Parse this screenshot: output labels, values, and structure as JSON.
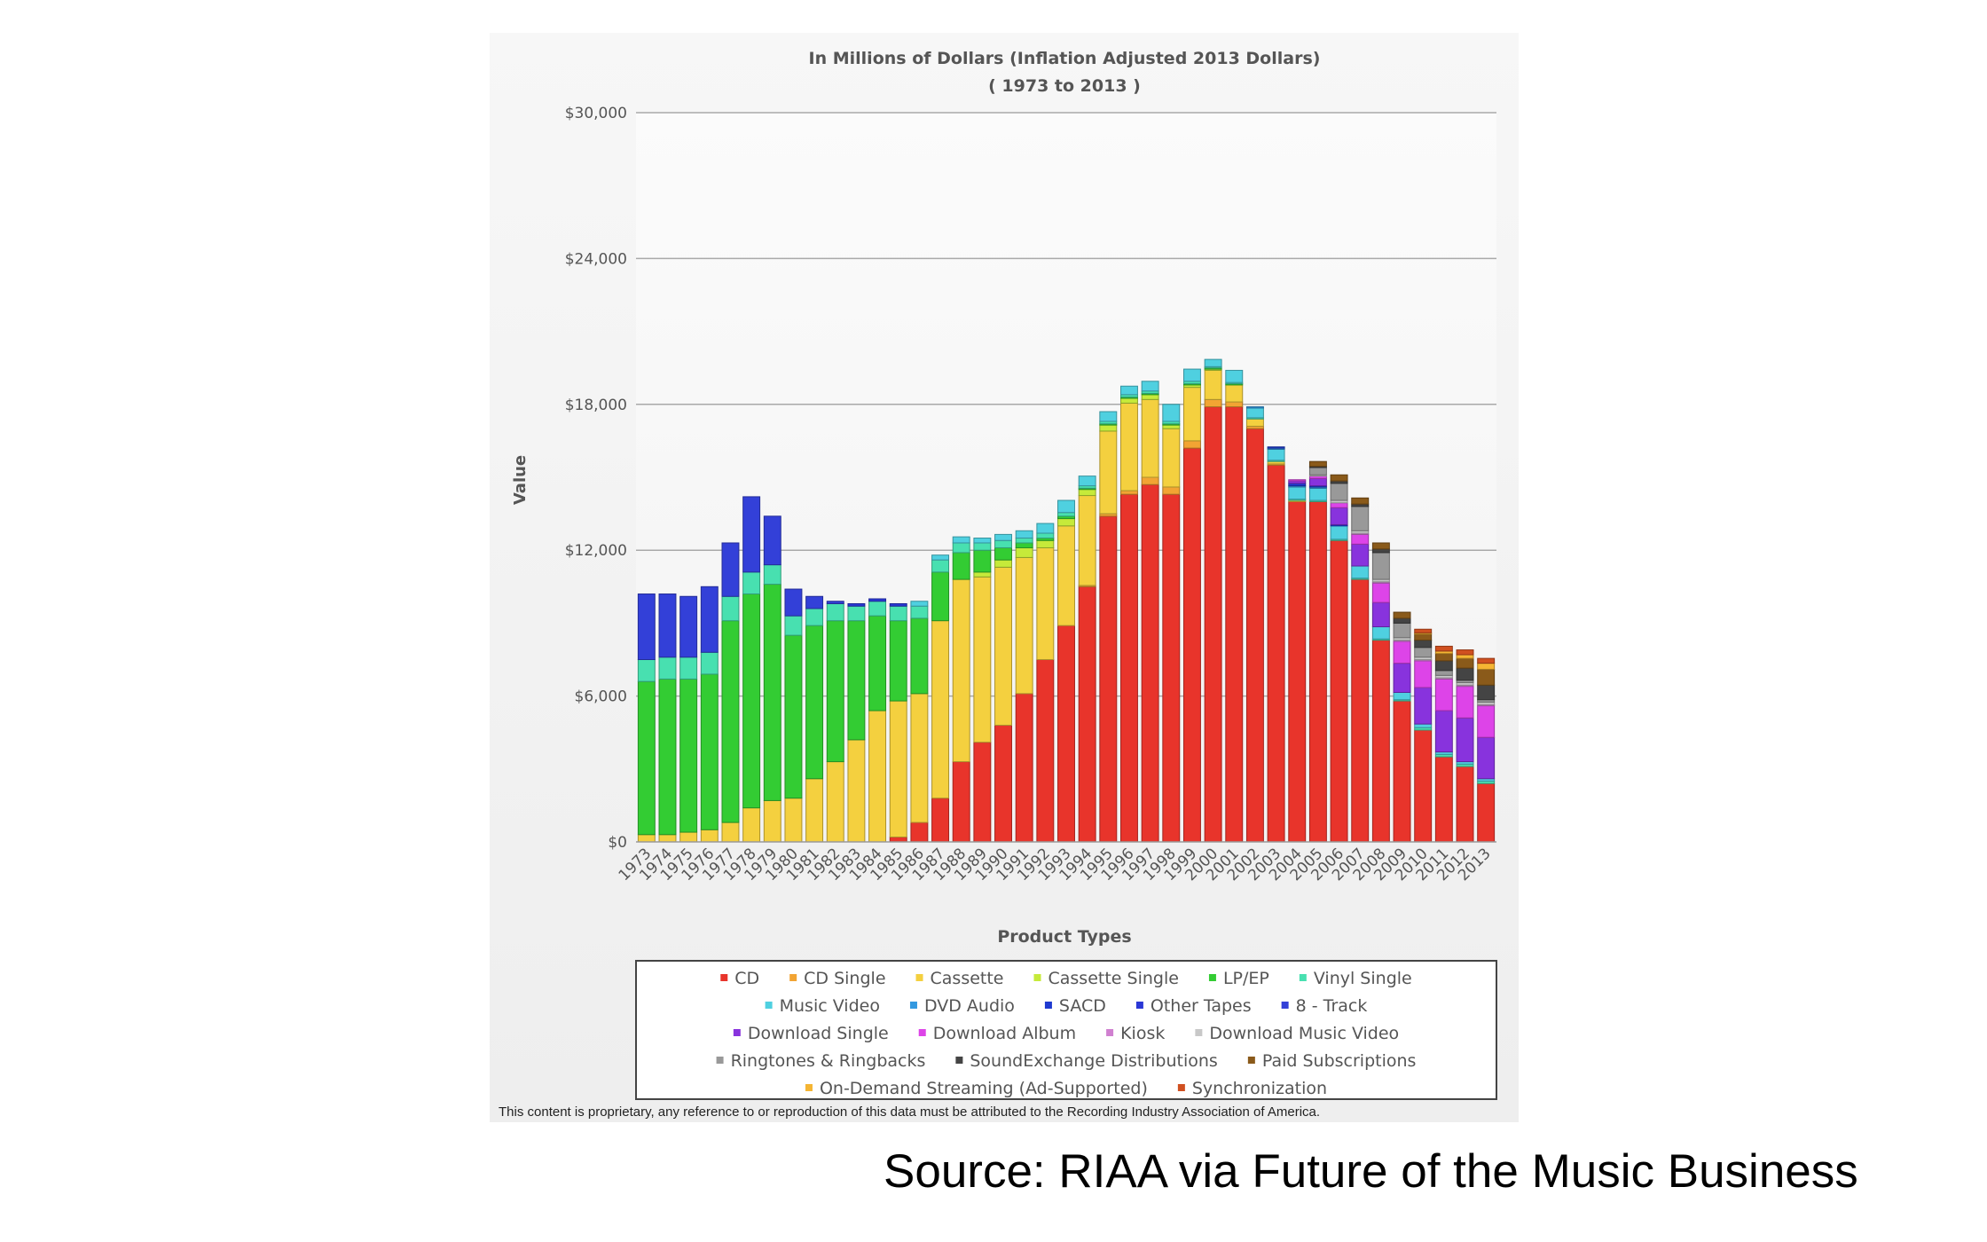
{
  "chart_data": {
    "type": "bar",
    "stacked": true,
    "title": "In Millions of Dollars (Inflation Adjusted 2013 Dollars)",
    "subtitle": "( 1973 to 2013 )",
    "xlabel": "Product Types",
    "ylabel": "Value",
    "ylim": [
      0,
      30000
    ],
    "yticks": [
      "$0",
      "$6,000",
      "$12,000",
      "$18,000",
      "$24,000",
      "$30,000"
    ],
    "ytick_values": [
      0,
      6000,
      12000,
      18000,
      24000,
      30000
    ],
    "grid": true,
    "legend_position": "bottom",
    "categories": [
      "1973",
      "1974",
      "1975",
      "1976",
      "1977",
      "1978",
      "1979",
      "1980",
      "1981",
      "1982",
      "1983",
      "1984",
      "1985",
      "1986",
      "1987",
      "1988",
      "1989",
      "1990",
      "1991",
      "1992",
      "1993",
      "1994",
      "1995",
      "1996",
      "1997",
      "1998",
      "1999",
      "2000",
      "2001",
      "2002",
      "2003",
      "2004",
      "2005",
      "2006",
      "2007",
      "2008",
      "2009",
      "2010",
      "2011",
      "2012",
      "2013"
    ],
    "series": [
      {
        "name": "CD",
        "color": "#e8342b",
        "values": [
          0,
          0,
          0,
          0,
          0,
          0,
          0,
          0,
          0,
          0,
          0,
          0,
          200,
          800,
          1800,
          3300,
          4100,
          4800,
          6100,
          7500,
          8900,
          10500,
          13400,
          14300,
          14700,
          14300,
          16200,
          17900,
          17900,
          17000,
          15500,
          14000,
          14000,
          12400,
          10800,
          8300,
          5800,
          4600,
          3500,
          3100,
          2400
        ]
      },
      {
        "name": "CD Single",
        "color": "#f2a433",
        "values": [
          0,
          0,
          0,
          0,
          0,
          0,
          0,
          0,
          0,
          0,
          0,
          0,
          0,
          0,
          0,
          0,
          0,
          0,
          0,
          0,
          0,
          50,
          100,
          150,
          300,
          300,
          300,
          300,
          200,
          100,
          50,
          0,
          0,
          0,
          0,
          0,
          0,
          0,
          0,
          0,
          0
        ]
      },
      {
        "name": "Cassette",
        "color": "#f4d03f",
        "values": [
          300,
          300,
          400,
          500,
          800,
          1400,
          1700,
          1800,
          2600,
          3300,
          4200,
          5400,
          5600,
          5300,
          7300,
          7500,
          6800,
          6500,
          5600,
          4600,
          4100,
          3700,
          3400,
          3600,
          3200,
          2400,
          2200,
          1200,
          700,
          300,
          100,
          50,
          0,
          0,
          0,
          0,
          0,
          0,
          0,
          0,
          0
        ]
      },
      {
        "name": "Cassette Single",
        "color": "#c6ea3a",
        "values": [
          0,
          0,
          0,
          0,
          0,
          0,
          0,
          0,
          0,
          0,
          0,
          0,
          0,
          0,
          0,
          0,
          200,
          300,
          400,
          300,
          300,
          250,
          250,
          200,
          200,
          150,
          100,
          50,
          0,
          0,
          0,
          0,
          0,
          0,
          0,
          0,
          0,
          0,
          0,
          0,
          0
        ]
      },
      {
        "name": "LP/EP",
        "color": "#33cc33",
        "values": [
          6300,
          6400,
          6300,
          6400,
          8300,
          8800,
          8900,
          6700,
          6300,
          5800,
          4900,
          3900,
          3300,
          3100,
          2000,
          1100,
          900,
          500,
          200,
          100,
          100,
          50,
          50,
          50,
          50,
          50,
          50,
          50,
          50,
          0,
          0,
          0,
          0,
          0,
          0,
          0,
          0,
          0,
          0,
          0,
          0
        ]
      },
      {
        "name": "Vinyl Single",
        "color": "#48e0b0",
        "values": [
          900,
          900,
          900,
          900,
          1000,
          900,
          800,
          800,
          700,
          700,
          600,
          600,
          600,
          500,
          500,
          400,
          300,
          300,
          200,
          200,
          150,
          100,
          100,
          100,
          100,
          100,
          100,
          50,
          50,
          50,
          50,
          50,
          50,
          50,
          50,
          50,
          50,
          100,
          100,
          100,
          100
        ]
      },
      {
        "name": "Music Video",
        "color": "#4fd0e0",
        "values": [
          0,
          0,
          0,
          0,
          0,
          0,
          0,
          0,
          0,
          0,
          0,
          0,
          0,
          200,
          200,
          250,
          200,
          250,
          300,
          400,
          500,
          400,
          400,
          350,
          400,
          700,
          500,
          300,
          500,
          400,
          450,
          500,
          500,
          550,
          500,
          500,
          300,
          150,
          100,
          100,
          100
        ]
      },
      {
        "name": "DVD Audio",
        "color": "#3399e0",
        "values": [
          0,
          0,
          0,
          0,
          0,
          0,
          0,
          0,
          0,
          0,
          0,
          0,
          0,
          0,
          0,
          0,
          0,
          0,
          0,
          0,
          0,
          0,
          0,
          0,
          0,
          0,
          0,
          0,
          0,
          50,
          50,
          50,
          50,
          0,
          0,
          0,
          0,
          0,
          0,
          0,
          0
        ]
      },
      {
        "name": "SACD",
        "color": "#1f3ad0",
        "values": [
          0,
          0,
          0,
          0,
          0,
          0,
          0,
          0,
          0,
          0,
          0,
          0,
          0,
          0,
          0,
          0,
          0,
          0,
          0,
          0,
          0,
          0,
          0,
          0,
          0,
          0,
          0,
          0,
          0,
          0,
          50,
          100,
          50,
          50,
          0,
          0,
          0,
          0,
          0,
          0,
          0
        ]
      },
      {
        "name": "Other Tapes",
        "color": "#2b38d6",
        "values": [
          0,
          0,
          0,
          0,
          0,
          0,
          0,
          0,
          0,
          0,
          100,
          100,
          100,
          0,
          0,
          0,
          0,
          0,
          0,
          0,
          0,
          0,
          0,
          0,
          0,
          0,
          0,
          0,
          0,
          0,
          0,
          0,
          0,
          0,
          0,
          0,
          0,
          0,
          0,
          0,
          0
        ]
      },
      {
        "name": "8 - Track",
        "color": "#3340d8",
        "values": [
          2700,
          2600,
          2500,
          2700,
          2200,
          3100,
          2000,
          1100,
          500,
          100,
          0,
          0,
          0,
          0,
          0,
          0,
          0,
          0,
          0,
          0,
          0,
          0,
          0,
          0,
          0,
          0,
          0,
          0,
          0,
          0,
          0,
          0,
          0,
          0,
          0,
          0,
          0,
          0,
          0,
          0,
          0
        ]
      },
      {
        "name": "Download Single",
        "color": "#8833dd",
        "values": [
          0,
          0,
          0,
          0,
          0,
          0,
          0,
          0,
          0,
          0,
          0,
          0,
          0,
          0,
          0,
          0,
          0,
          0,
          0,
          0,
          0,
          0,
          0,
          0,
          0,
          0,
          0,
          0,
          0,
          0,
          0,
          100,
          300,
          700,
          900,
          1000,
          1200,
          1500,
          1700,
          1800,
          1700
        ]
      },
      {
        "name": "Download Album",
        "color": "#dd44e8",
        "values": [
          0,
          0,
          0,
          0,
          0,
          0,
          0,
          0,
          0,
          0,
          0,
          0,
          0,
          0,
          0,
          0,
          0,
          0,
          0,
          0,
          0,
          0,
          0,
          0,
          0,
          0,
          0,
          0,
          0,
          0,
          0,
          50,
          100,
          200,
          400,
          800,
          900,
          1100,
          1300,
          1300,
          1300
        ]
      },
      {
        "name": "Kiosk",
        "color": "#d080d0",
        "values": [
          0,
          0,
          0,
          0,
          0,
          0,
          0,
          0,
          0,
          0,
          0,
          0,
          0,
          0,
          0,
          0,
          0,
          0,
          0,
          0,
          0,
          0,
          0,
          0,
          0,
          0,
          0,
          0,
          0,
          0,
          0,
          0,
          0,
          0,
          50,
          50,
          50,
          50,
          50,
          50,
          50
        ]
      },
      {
        "name": "Download Music Video",
        "color": "#c8c8c8",
        "values": [
          0,
          0,
          0,
          0,
          0,
          0,
          0,
          0,
          0,
          0,
          0,
          0,
          0,
          0,
          0,
          0,
          0,
          0,
          0,
          0,
          0,
          0,
          0,
          0,
          0,
          0,
          0,
          0,
          0,
          0,
          0,
          0,
          50,
          100,
          100,
          100,
          100,
          100,
          100,
          100,
          100
        ]
      },
      {
        "name": "Ringtones & Ringbacks",
        "color": "#999999",
        "values": [
          0,
          0,
          0,
          0,
          0,
          0,
          0,
          0,
          0,
          0,
          0,
          0,
          0,
          0,
          0,
          0,
          0,
          0,
          0,
          0,
          0,
          0,
          0,
          0,
          0,
          0,
          0,
          0,
          0,
          0,
          0,
          0,
          300,
          700,
          1000,
          1100,
          600,
          400,
          200,
          100,
          100
        ]
      },
      {
        "name": "SoundExchange Distributions",
        "color": "#444444",
        "values": [
          0,
          0,
          0,
          0,
          0,
          0,
          0,
          0,
          0,
          0,
          0,
          0,
          0,
          0,
          0,
          0,
          0,
          0,
          0,
          0,
          0,
          0,
          0,
          0,
          0,
          0,
          0,
          0,
          0,
          0,
          0,
          0,
          50,
          100,
          100,
          150,
          200,
          300,
          400,
          500,
          600
        ]
      },
      {
        "name": "Paid Subscriptions",
        "color": "#8a5a1a",
        "values": [
          0,
          0,
          0,
          0,
          0,
          0,
          0,
          0,
          0,
          0,
          0,
          0,
          0,
          0,
          0,
          0,
          0,
          0,
          0,
          0,
          0,
          0,
          0,
          0,
          0,
          0,
          0,
          0,
          0,
          0,
          0,
          0,
          200,
          250,
          250,
          250,
          250,
          250,
          300,
          400,
          650
        ]
      },
      {
        "name": "On-Demand Streaming (Ad-Supported)",
        "color": "#f5b533",
        "values": [
          0,
          0,
          0,
          0,
          0,
          0,
          0,
          0,
          0,
          0,
          0,
          0,
          0,
          0,
          0,
          0,
          0,
          0,
          0,
          0,
          0,
          0,
          0,
          0,
          0,
          0,
          0,
          0,
          0,
          0,
          0,
          0,
          0,
          0,
          0,
          0,
          0,
          50,
          100,
          150,
          250
        ]
      },
      {
        "name": "Synchronization",
        "color": "#d05020",
        "values": [
          0,
          0,
          0,
          0,
          0,
          0,
          0,
          0,
          0,
          0,
          0,
          0,
          0,
          0,
          0,
          0,
          0,
          0,
          0,
          0,
          0,
          0,
          0,
          0,
          0,
          0,
          0,
          0,
          0,
          0,
          0,
          0,
          0,
          0,
          0,
          0,
          0,
          150,
          200,
          200,
          200
        ]
      }
    ]
  },
  "footer_note": "This content is proprietary, any reference to or reproduction of this data must be attributed to the Recording Industry Association of America.",
  "source": "Source: RIAA via Future of the Music Business"
}
